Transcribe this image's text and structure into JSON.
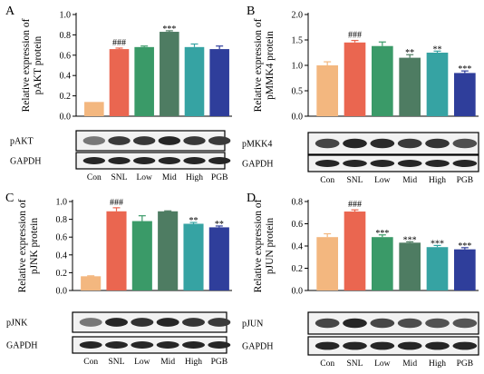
{
  "categories": [
    "Con",
    "SNL",
    "Low",
    "Mid",
    "High",
    "PGB"
  ],
  "colors": [
    "#f3b77f",
    "#ea6650",
    "#3a9a68",
    "#4e7c62",
    "#36a3a3",
    "#2f3e9b"
  ],
  "panels": [
    {
      "letter": "A",
      "ylabel": [
        "Relative expression of",
        "pAKT protein"
      ],
      "ylim": [
        0,
        1.0
      ],
      "ticks": [
        "0.0",
        "0.2",
        "0.4",
        "0.6",
        "0.8",
        "1.0"
      ],
      "values": [
        0.14,
        0.66,
        0.68,
        0.83,
        0.68,
        0.66
      ],
      "errors": [
        0.0,
        0.01,
        0.01,
        0.01,
        0.03,
        0.03
      ],
      "marks": [
        "",
        "###",
        "",
        "***",
        "",
        ""
      ],
      "blot_protein": "pAKT",
      "blot_control": "GAPDH"
    },
    {
      "letter": "B",
      "ylabel": [
        "Relative expression of",
        "pMMK4 protein"
      ],
      "ylim": [
        0,
        2.0
      ],
      "ticks": [
        "0.0",
        "0.5",
        "1.0",
        "1.5",
        "2.0"
      ],
      "values": [
        1.0,
        1.45,
        1.38,
        1.15,
        1.25,
        0.85
      ],
      "errors": [
        0.07,
        0.04,
        0.08,
        0.06,
        0.03,
        0.04
      ],
      "marks": [
        "",
        "###",
        "",
        "**",
        "**",
        "***"
      ],
      "blot_protein": "pMKK4",
      "blot_control": "GAPDH"
    },
    {
      "letter": "C",
      "ylabel": [
        "Relative expression of",
        "pJNK protein"
      ],
      "ylim": [
        0,
        1.0
      ],
      "ticks": [
        "0.0",
        "0.2",
        "0.4",
        "0.6",
        "0.8",
        "1.0"
      ],
      "values": [
        0.16,
        0.89,
        0.78,
        0.89,
        0.75,
        0.71
      ],
      "errors": [
        0.005,
        0.04,
        0.06,
        0.005,
        0.015,
        0.015
      ],
      "marks": [
        "",
        "###",
        "",
        "",
        "**",
        "**"
      ],
      "blot_protein": "pJNK",
      "blot_control": "GAPDH"
    },
    {
      "letter": "D",
      "ylabel": [
        "Relative expression of",
        "pJUN protein"
      ],
      "ylim": [
        0,
        0.8
      ],
      "ticks": [
        "0.0",
        "0.2",
        "0.4",
        "0.6",
        "0.8"
      ],
      "values": [
        0.48,
        0.71,
        0.48,
        0.43,
        0.39,
        0.37
      ],
      "errors": [
        0.03,
        0.015,
        0.02,
        0.008,
        0.015,
        0.015
      ],
      "marks": [
        "",
        "###",
        "***",
        "***",
        "***",
        "***"
      ],
      "blot_protein": "pJUN",
      "blot_control": "GAPDH"
    }
  ],
  "chart_data": [
    {
      "type": "bar",
      "categories": [
        "Con",
        "SNL",
        "Low",
        "Mid",
        "High",
        "PGB"
      ],
      "values": [
        0.14,
        0.66,
        0.68,
        0.83,
        0.68,
        0.66
      ],
      "ylabel": "Relative expression of pAKT protein",
      "ylim": [
        0,
        1.0
      ],
      "grid": false
    },
    {
      "type": "bar",
      "categories": [
        "Con",
        "SNL",
        "Low",
        "Mid",
        "High",
        "PGB"
      ],
      "values": [
        1.0,
        1.45,
        1.38,
        1.15,
        1.25,
        0.85
      ],
      "ylabel": "Relative expression of pMMK4 protein",
      "ylim": [
        0,
        2.0
      ],
      "grid": false
    },
    {
      "type": "bar",
      "categories": [
        "Con",
        "SNL",
        "Low",
        "Mid",
        "High",
        "PGB"
      ],
      "values": [
        0.16,
        0.89,
        0.78,
        0.89,
        0.75,
        0.71
      ],
      "ylabel": "Relative expression of pJNK protein",
      "ylim": [
        0,
        1.0
      ],
      "grid": false
    },
    {
      "type": "bar",
      "categories": [
        "Con",
        "SNL",
        "Low",
        "Mid",
        "High",
        "PGB"
      ],
      "values": [
        0.48,
        0.71,
        0.48,
        0.43,
        0.39,
        0.37
      ],
      "ylabel": "Relative expression of pJUN protein",
      "ylim": [
        0,
        0.8
      ],
      "grid": false
    }
  ]
}
